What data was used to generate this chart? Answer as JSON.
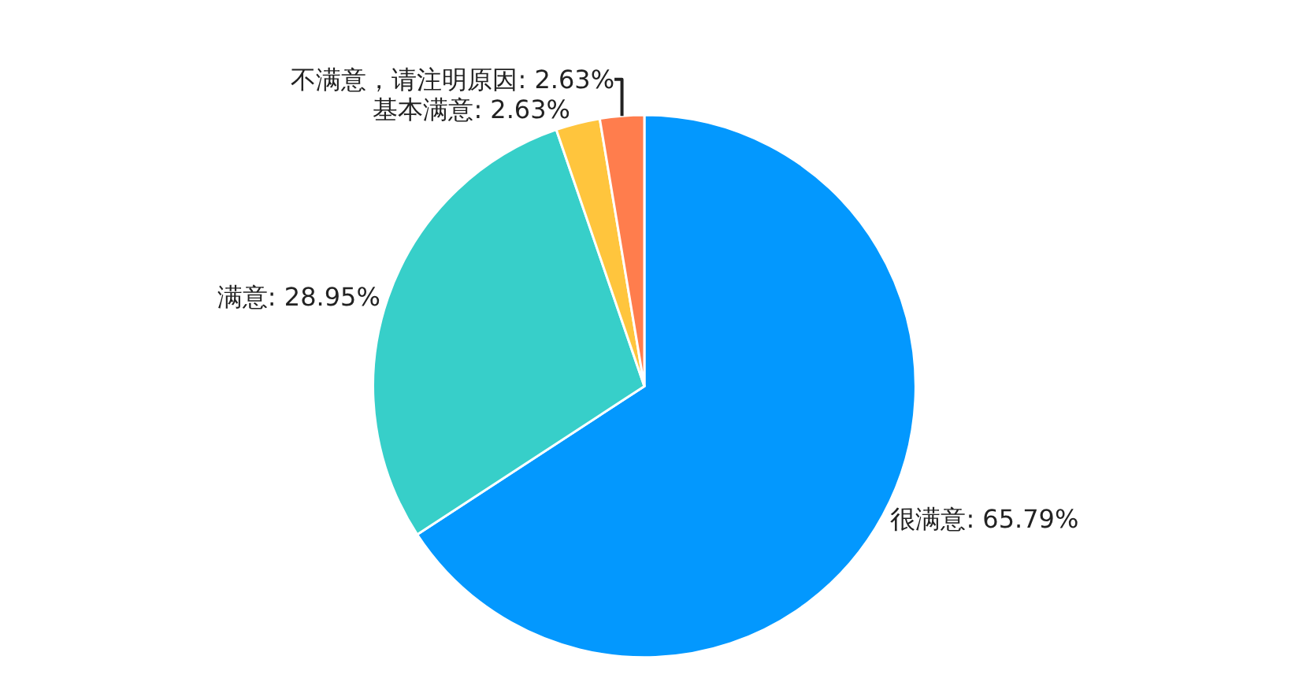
{
  "chart_data": {
    "type": "pie",
    "categories": [
      "很满意",
      "满意",
      "基本满意",
      "不满意，请注明原因"
    ],
    "values": [
      65.79,
      28.95,
      2.63,
      2.63
    ],
    "value_labels": [
      "65.79%",
      "28.95%",
      "2.63%",
      "2.63%"
    ],
    "colors": [
      "#0398fe",
      "#37cfc9",
      "#ffc53d",
      "#ff7d4d"
    ],
    "legend": false
  }
}
